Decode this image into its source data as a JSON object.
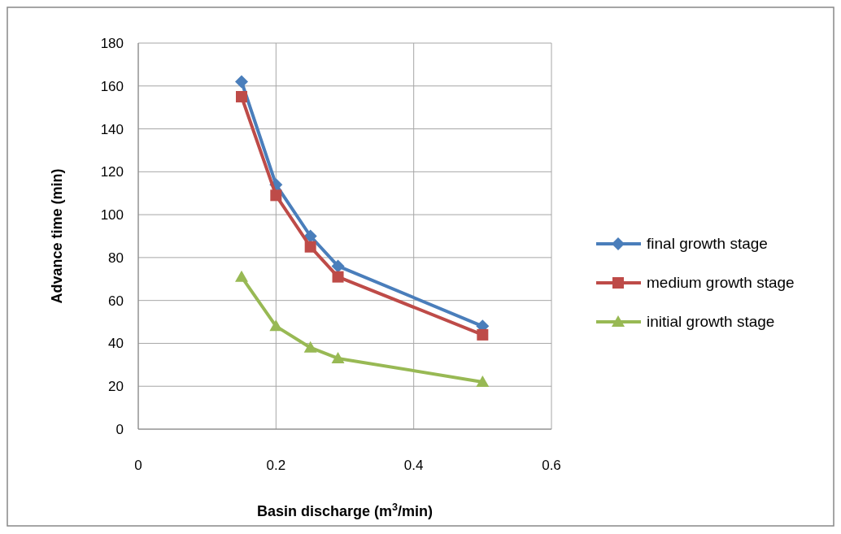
{
  "chart_data": {
    "type": "line",
    "xlabel": "Basin discharge (m$^{3}$/min)",
    "ylabel": "Advance time (min)",
    "xlim": [
      0,
      0.6
    ],
    "xticks": [
      0,
      0.2,
      0.4,
      0.6
    ],
    "ylim": [
      0,
      180
    ],
    "yticks": [
      0,
      20,
      40,
      60,
      80,
      100,
      120,
      140,
      160,
      180
    ],
    "grid": true,
    "legend": "right",
    "x": [
      0.15,
      0.2,
      0.25,
      0.29,
      0.5
    ],
    "series": [
      {
        "name": "final growth stage",
        "color": "#4a7ebb",
        "marker": "diamond",
        "values": [
          162,
          114,
          90,
          76,
          48
        ]
      },
      {
        "name": "medium growth stage",
        "color": "#be4b48",
        "marker": "square",
        "values": [
          155,
          109,
          85,
          71,
          44
        ]
      },
      {
        "name": "initial growth stage",
        "color": "#98b954",
        "marker": "triangle",
        "values": [
          71,
          48,
          38,
          33,
          22
        ]
      }
    ]
  }
}
